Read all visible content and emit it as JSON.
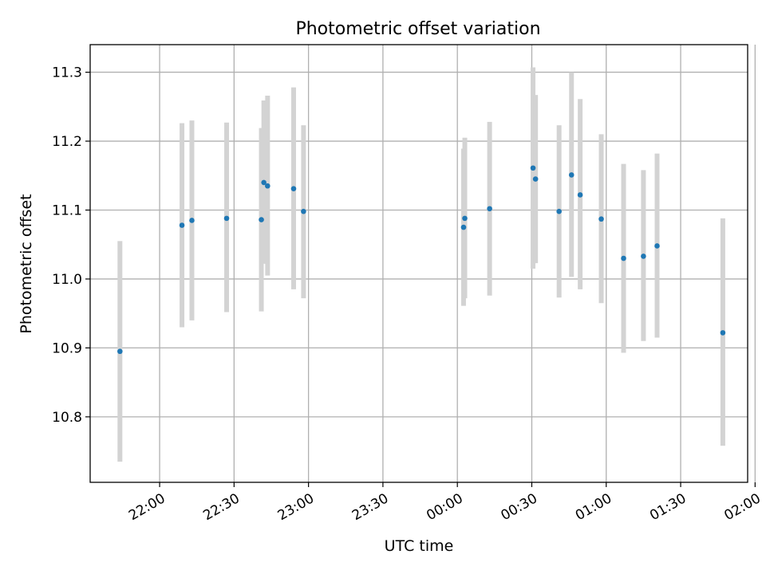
{
  "chart_data": {
    "type": "scatter",
    "title": "Photometric offset variation",
    "xlabel": "UTC time",
    "ylabel": "Photometric offset",
    "x_unit": "minutes after 00:00 UTC",
    "xlim": [
      -148,
      117
    ],
    "ylim": [
      10.705,
      11.34
    ],
    "grid": true,
    "x_ticks": [
      {
        "value": -120,
        "label": "22:00"
      },
      {
        "value": -90,
        "label": "22:30"
      },
      {
        "value": -60,
        "label": "23:00"
      },
      {
        "value": -30,
        "label": "23:30"
      },
      {
        "value": 0,
        "label": "00:00"
      },
      {
        "value": 30,
        "label": "00:30"
      },
      {
        "value": 60,
        "label": "01:00"
      },
      {
        "value": 90,
        "label": "01:30"
      },
      {
        "value": 120,
        "label": "02:00"
      }
    ],
    "y_ticks": [
      {
        "value": 10.8,
        "label": "10.8"
      },
      {
        "value": 10.9,
        "label": "10.9"
      },
      {
        "value": 11.0,
        "label": "11.0"
      },
      {
        "value": 11.1,
        "label": "11.1"
      },
      {
        "value": 11.2,
        "label": "11.2"
      },
      {
        "value": 11.3,
        "label": "11.3"
      }
    ],
    "series": [
      {
        "marker_color": "#1f77b4",
        "errorbar_color": "#d3d3d3",
        "points": [
          {
            "x": -136,
            "y": 10.895,
            "err_low": 10.735,
            "err_high": 11.055
          },
          {
            "x": -111,
            "y": 11.078,
            "err_low": 10.93,
            "err_high": 11.226
          },
          {
            "x": -107,
            "y": 11.085,
            "err_low": 10.94,
            "err_high": 11.23
          },
          {
            "x": -93,
            "y": 11.088,
            "err_low": 10.952,
            "err_high": 11.227
          },
          {
            "x": -79,
            "y": 11.086,
            "err_low": 10.953,
            "err_high": 11.219
          },
          {
            "x": -78,
            "y": 11.14,
            "err_low": 11.022,
            "err_high": 11.259
          },
          {
            "x": -76.5,
            "y": 11.135,
            "err_low": 11.005,
            "err_high": 11.266
          },
          {
            "x": -66,
            "y": 11.131,
            "err_low": 10.985,
            "err_high": 11.278
          },
          {
            "x": -62,
            "y": 11.098,
            "err_low": 10.972,
            "err_high": 11.223
          },
          {
            "x": 2.5,
            "y": 11.075,
            "err_low": 10.961,
            "err_high": 11.189
          },
          {
            "x": 3,
            "y": 11.088,
            "err_low": 10.972,
            "err_high": 11.205
          },
          {
            "x": 13,
            "y": 11.102,
            "err_low": 10.976,
            "err_high": 11.228
          },
          {
            "x": 30.5,
            "y": 11.161,
            "err_low": 11.015,
            "err_high": 11.307
          },
          {
            "x": 31.5,
            "y": 11.145,
            "err_low": 11.023,
            "err_high": 11.267
          },
          {
            "x": 41,
            "y": 11.098,
            "err_low": 10.973,
            "err_high": 11.223
          },
          {
            "x": 46,
            "y": 11.151,
            "err_low": 11.003,
            "err_high": 11.3
          },
          {
            "x": 49.5,
            "y": 11.122,
            "err_low": 10.985,
            "err_high": 11.261
          },
          {
            "x": 58,
            "y": 11.087,
            "err_low": 10.965,
            "err_high": 11.21
          },
          {
            "x": 67,
            "y": 11.03,
            "err_low": 10.893,
            "err_high": 11.167
          },
          {
            "x": 75,
            "y": 11.033,
            "err_low": 10.91,
            "err_high": 11.158
          },
          {
            "x": 80.5,
            "y": 11.048,
            "err_low": 10.915,
            "err_high": 11.182
          },
          {
            "x": 107,
            "y": 10.922,
            "err_low": 10.758,
            "err_high": 11.088
          }
        ]
      }
    ]
  }
}
